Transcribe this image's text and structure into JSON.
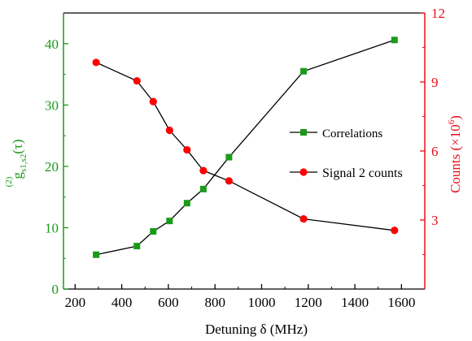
{
  "chart_data": {
    "type": "line",
    "xlabel": "Detuning δ (MHz)",
    "xlim": [
      150,
      1700
    ],
    "xticks": [
      200,
      400,
      600,
      800,
      1000,
      1200,
      1400,
      1600
    ],
    "y_left": {
      "label_main": "g",
      "label_sup": "(2)",
      "label_sub": "s1,s2",
      "label_tail": "(τ)",
      "lim": [
        0,
        45
      ],
      "ticks": [
        0,
        10,
        20,
        30,
        40
      ],
      "color": "#1a9a1a"
    },
    "y_right": {
      "label_main": "Counts (×10",
      "label_sup": "6",
      "label_tail": ")",
      "lim": [
        0,
        12
      ],
      "ticks": [
        3,
        6,
        9,
        12
      ],
      "color": "#e8101a"
    },
    "series": [
      {
        "name": "Correlations",
        "axis": "left",
        "marker": "square",
        "marker_color": "#1a9a1a",
        "line_color": "#000000",
        "x": [
          290,
          465,
          535,
          605,
          680,
          750,
          860,
          1180,
          1570
        ],
        "y": [
          5.6,
          7.0,
          9.4,
          11.1,
          14.0,
          16.3,
          21.5,
          35.5,
          40.6
        ]
      },
      {
        "name": "Signal 2 counts",
        "axis": "right",
        "marker": "circle",
        "marker_color": "#ff0000",
        "line_color": "#000000",
        "x": [
          290,
          465,
          535,
          605,
          680,
          750,
          860,
          1180,
          1570
        ],
        "y": [
          9.85,
          9.05,
          8.15,
          6.9,
          6.05,
          5.15,
          4.7,
          3.05,
          2.55
        ]
      }
    ],
    "legend_position": "right-middle"
  }
}
